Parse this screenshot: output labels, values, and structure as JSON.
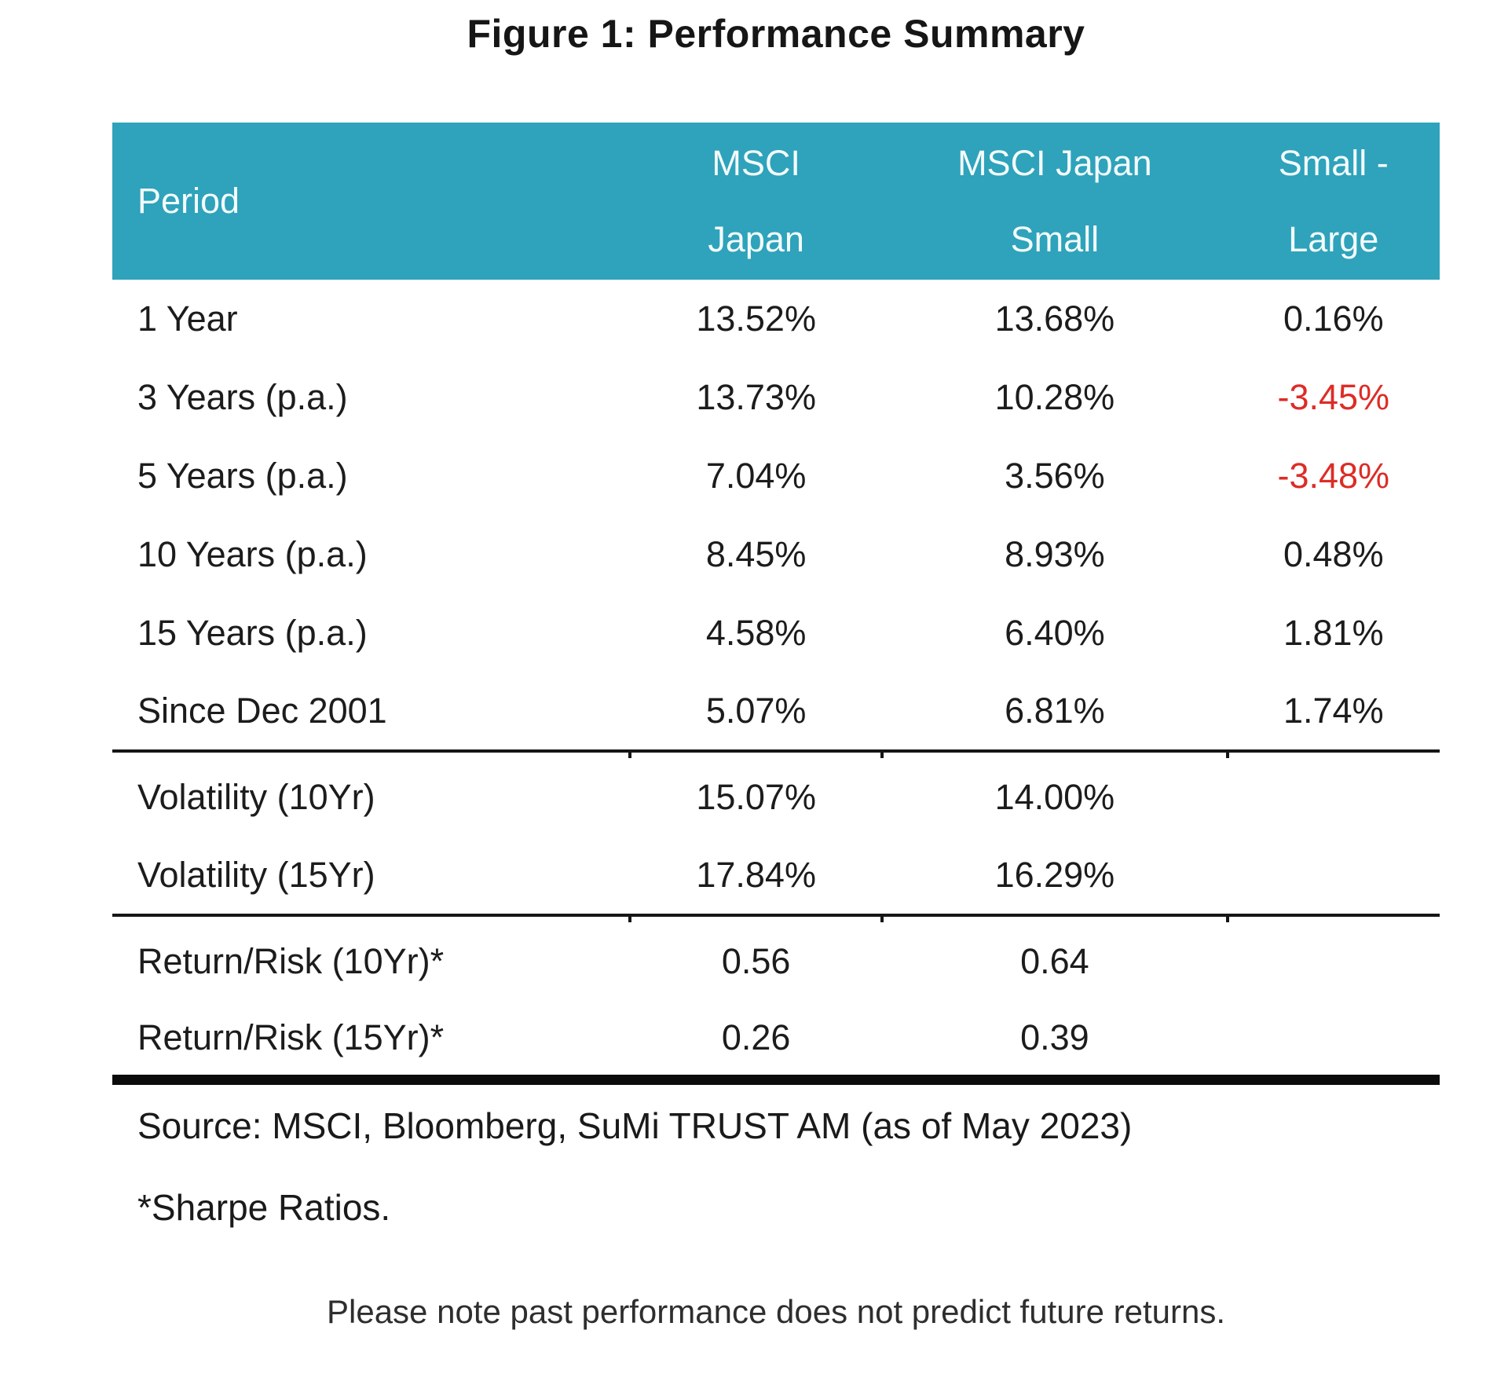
{
  "title": "Figure 1: Performance Summary",
  "colors": {
    "header_background": "#2ea3bb",
    "header_text": "#f4fbfc",
    "negative_value": "#dd2c26",
    "body_text": "#1c1c1c"
  },
  "table": {
    "header": {
      "period_label": "Period",
      "columns": [
        {
          "line1": "MSCI",
          "line2": "Japan"
        },
        {
          "line1": "MSCI Japan",
          "line2": "Small"
        },
        {
          "line1": "Small -",
          "line2": "Large"
        }
      ]
    },
    "rows": [
      {
        "period": "1 Year",
        "msci_japan": "13.52%",
        "msci_japan_small": "13.68%",
        "small_minus_large": "0.16%",
        "negative": false
      },
      {
        "period": "3 Years (p.a.)",
        "msci_japan": "13.73%",
        "msci_japan_small": "10.28%",
        "small_minus_large": "-3.45%",
        "negative": true
      },
      {
        "period": "5 Years (p.a.)",
        "msci_japan": "7.04%",
        "msci_japan_small": "3.56%",
        "small_minus_large": "-3.48%",
        "negative": true
      },
      {
        "period": "10 Years (p.a.)",
        "msci_japan": "8.45%",
        "msci_japan_small": "8.93%",
        "small_minus_large": "0.48%",
        "negative": false
      },
      {
        "period": "15 Years (p.a.)",
        "msci_japan": "4.58%",
        "msci_japan_small": "6.40%",
        "small_minus_large": "1.81%",
        "negative": false
      },
      {
        "period": "Since Dec 2001",
        "msci_japan": "5.07%",
        "msci_japan_small": "6.81%",
        "small_minus_large": "1.74%",
        "negative": false,
        "divider_after": "thin"
      },
      {
        "period": "Volatility (10Yr)",
        "msci_japan": "15.07%",
        "msci_japan_small": "14.00%",
        "small_minus_large": "",
        "negative": false
      },
      {
        "period": "Volatility (15Yr)",
        "msci_japan": "17.84%",
        "msci_japan_small": "16.29%",
        "small_minus_large": "",
        "negative": false,
        "divider_after": "thin"
      },
      {
        "period": "Return/Risk (10Yr)*",
        "msci_japan": "0.56",
        "msci_japan_small": "0.64",
        "small_minus_large": "",
        "negative": false
      },
      {
        "period": "Return/Risk (15Yr)*",
        "msci_japan": "0.26",
        "msci_japan_small": "0.39",
        "small_minus_large": "",
        "negative": false,
        "divider_after": "thick"
      }
    ]
  },
  "footnotes": {
    "source": "Source: MSCI, Bloomberg, SuMi TRUST AM (as of May 2023)",
    "sharpe": "*Sharpe Ratios.",
    "disclaimer": "Please note past performance does not predict future returns."
  },
  "chart_data": {
    "type": "table",
    "title": "Figure 1: Performance Summary",
    "columns": [
      "Period",
      "MSCI Japan",
      "MSCI Japan Small",
      "Small - Large"
    ],
    "rows": [
      [
        "1 Year",
        "13.52%",
        "13.68%",
        "0.16%"
      ],
      [
        "3 Years (p.a.)",
        "13.73%",
        "10.28%",
        "-3.45%"
      ],
      [
        "5 Years (p.a.)",
        "7.04%",
        "3.56%",
        "-3.48%"
      ],
      [
        "10 Years (p.a.)",
        "8.45%",
        "8.93%",
        "0.48%"
      ],
      [
        "15 Years (p.a.)",
        "4.58%",
        "6.40%",
        "1.81%"
      ],
      [
        "Since Dec 2001",
        "5.07%",
        "6.81%",
        "1.74%"
      ],
      [
        "Volatility (10Yr)",
        "15.07%",
        "14.00%",
        ""
      ],
      [
        "Volatility (15Yr)",
        "17.84%",
        "16.29%",
        ""
      ],
      [
        "Return/Risk (10Yr)*",
        "0.56",
        "0.64",
        ""
      ],
      [
        "Return/Risk (15Yr)*",
        "0.26",
        "0.39",
        ""
      ]
    ],
    "negative_cells_red": [
      [
        1,
        3
      ],
      [
        2,
        3
      ]
    ],
    "notes": [
      "Source: MSCI, Bloomberg, SuMi TRUST AM (as of May 2023)",
      "*Sharpe Ratios.",
      "Please note past performance does not predict future returns."
    ]
  }
}
